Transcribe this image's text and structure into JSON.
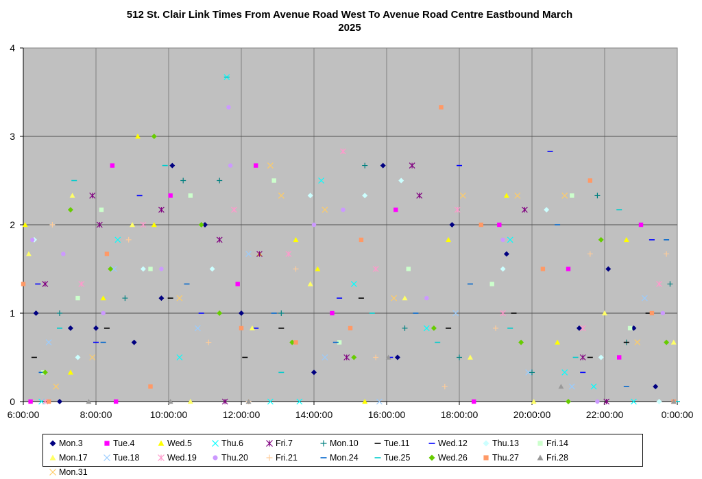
{
  "chart_data": {
    "type": "scatter",
    "title_line1": "512 St. Clair Link Times From Avenue Road West To Avenue Road Centre Eastbound March",
    "title_line2": "2025",
    "xlabel": "",
    "ylabel": "",
    "x_ticks": [
      "6:00:00",
      "8:00:00",
      "10:00:00",
      "12:00:00",
      "14:00:00",
      "16:00:00",
      "18:00:00",
      "20:00:00",
      "22:00:00",
      "0:00:00"
    ],
    "y_ticks": [
      "0",
      "1",
      "2",
      "3",
      "4"
    ],
    "xlim_hours": [
      6,
      24
    ],
    "ylim": [
      0,
      4
    ],
    "grid": true,
    "plot_background": "#c0c0c0",
    "legend_position": "bottom",
    "series": [
      {
        "name": "Mon.3",
        "marker": "diamond",
        "color": "#000080",
        "points": [
          [
            6.35,
            1.0
          ],
          [
            7.0,
            0.0
          ],
          [
            7.3,
            0.83
          ],
          [
            8.0,
            0.83
          ],
          [
            9.05,
            0.67
          ],
          [
            9.8,
            1.17
          ],
          [
            10.1,
            2.67
          ],
          [
            11.0,
            2.0
          ],
          [
            12.0,
            1.0
          ],
          [
            14.0,
            0.33
          ],
          [
            15.9,
            2.67
          ],
          [
            16.3,
            0.5
          ],
          [
            17.8,
            2.0
          ],
          [
            19.3,
            1.67
          ],
          [
            21.3,
            0.83
          ],
          [
            22.1,
            1.5
          ],
          [
            22.8,
            0.83
          ],
          [
            23.4,
            0.17
          ]
        ]
      },
      {
        "name": "Tue.4",
        "marker": "square",
        "color": "#ff00ff",
        "points": [
          [
            6.2,
            0.0
          ],
          [
            8.45,
            2.67
          ],
          [
            8.55,
            0.0
          ],
          [
            10.05,
            2.33
          ],
          [
            11.9,
            1.33
          ],
          [
            12.4,
            2.67
          ],
          [
            14.5,
            1.0
          ],
          [
            16.25,
            2.17
          ],
          [
            18.4,
            0.0
          ],
          [
            19.1,
            2.0
          ],
          [
            21.0,
            1.5
          ],
          [
            22.4,
            0.5
          ],
          [
            23.0,
            2.0
          ]
        ]
      },
      {
        "name": "Wed.5",
        "marker": "triangle",
        "color": "#ffff00",
        "points": [
          [
            6.05,
            2.0
          ],
          [
            7.3,
            0.33
          ],
          [
            8.2,
            1.17
          ],
          [
            9.15,
            3.0
          ],
          [
            9.6,
            2.0
          ],
          [
            12.5,
            1.67
          ],
          [
            13.5,
            1.83
          ],
          [
            14.1,
            1.5
          ],
          [
            15.4,
            0.0
          ],
          [
            17.7,
            1.83
          ],
          [
            19.3,
            2.33
          ],
          [
            20.7,
            0.67
          ],
          [
            22.6,
            1.83
          ]
        ]
      },
      {
        "name": "Thu.6",
        "marker": "x",
        "color": "#00ffff",
        "points": [
          [
            6.5,
            0.0
          ],
          [
            8.6,
            1.83
          ],
          [
            10.3,
            0.5
          ],
          [
            11.6,
            3.67
          ],
          [
            12.8,
            0.0
          ],
          [
            13.6,
            0.0
          ],
          [
            14.2,
            2.5
          ],
          [
            15.1,
            1.33
          ],
          [
            17.1,
            0.83
          ],
          [
            19.4,
            1.83
          ],
          [
            20.9,
            0.33
          ],
          [
            21.7,
            0.17
          ],
          [
            22.8,
            0.0
          ]
        ]
      },
      {
        "name": "Fri.7",
        "marker": "star",
        "color": "#800080",
        "points": [
          [
            6.6,
            1.33
          ],
          [
            7.9,
            2.33
          ],
          [
            8.1,
            2.0
          ],
          [
            9.8,
            2.17
          ],
          [
            11.4,
            1.83
          ],
          [
            11.55,
            0.0
          ],
          [
            12.5,
            1.67
          ],
          [
            14.9,
            0.5
          ],
          [
            16.7,
            2.67
          ],
          [
            16.9,
            2.33
          ],
          [
            19.8,
            2.17
          ],
          [
            21.4,
            0.5
          ],
          [
            22.05,
            0.0
          ]
        ]
      },
      {
        "name": "Mon.10",
        "marker": "plus",
        "color": "#008080",
        "points": [
          [
            7.0,
            1.0
          ],
          [
            8.8,
            1.17
          ],
          [
            10.4,
            2.5
          ],
          [
            11.4,
            2.5
          ],
          [
            13.1,
            1.0
          ],
          [
            15.4,
            2.67
          ],
          [
            16.5,
            0.83
          ],
          [
            18.0,
            0.5
          ],
          [
            20.0,
            0.33
          ],
          [
            21.8,
            2.33
          ],
          [
            22.6,
            0.67
          ],
          [
            23.8,
            1.33
          ]
        ]
      },
      {
        "name": "Tue.11",
        "marker": "dash",
        "color": "#000000",
        "points": [
          [
            6.3,
            0.5
          ],
          [
            8.3,
            0.83
          ],
          [
            10.05,
            1.17
          ],
          [
            12.1,
            0.5
          ],
          [
            13.1,
            0.83
          ],
          [
            15.3,
            1.17
          ],
          [
            17.7,
            0.83
          ],
          [
            19.5,
            1.0
          ],
          [
            21.6,
            0.5
          ],
          [
            22.6,
            0.67
          ],
          [
            23.2,
            1.0
          ]
        ]
      },
      {
        "name": "Wed.12",
        "marker": "dash",
        "color": "#0000ff",
        "points": [
          [
            6.4,
            1.33
          ],
          [
            8.0,
            0.67
          ],
          [
            9.2,
            2.33
          ],
          [
            10.9,
            1.0
          ],
          [
            12.4,
            0.83
          ],
          [
            14.7,
            1.17
          ],
          [
            16.1,
            0.5
          ],
          [
            18.0,
            2.67
          ],
          [
            20.5,
            2.83
          ],
          [
            21.4,
            0.33
          ],
          [
            23.3,
            1.83
          ]
        ]
      },
      {
        "name": "Thu.13",
        "marker": "diamond",
        "color": "#ccffff",
        "points": [
          [
            6.3,
            1.83
          ],
          [
            7.5,
            0.5
          ],
          [
            9.3,
            1.5
          ],
          [
            11.2,
            1.5
          ],
          [
            13.9,
            2.33
          ],
          [
            15.4,
            2.33
          ],
          [
            16.4,
            2.5
          ],
          [
            19.2,
            1.5
          ],
          [
            20.4,
            2.17
          ],
          [
            21.9,
            0.5
          ],
          [
            23.5,
            0.0
          ]
        ]
      },
      {
        "name": "Fri.14",
        "marker": "square",
        "color": "#ccffcc",
        "points": [
          [
            6.55,
            0.33
          ],
          [
            7.5,
            1.17
          ],
          [
            8.15,
            2.17
          ],
          [
            9.5,
            1.5
          ],
          [
            10.6,
            2.33
          ],
          [
            12.9,
            2.5
          ],
          [
            14.7,
            0.67
          ],
          [
            16.6,
            1.5
          ],
          [
            18.9,
            1.33
          ],
          [
            21.1,
            2.33
          ],
          [
            22.7,
            0.83
          ]
        ]
      },
      {
        "name": "Mon.17",
        "marker": "triangle",
        "color": "#ffff66",
        "points": [
          [
            6.15,
            1.67
          ],
          [
            7.35,
            2.33
          ],
          [
            9.0,
            2.0
          ],
          [
            10.6,
            0.0
          ],
          [
            12.3,
            0.83
          ],
          [
            13.9,
            1.33
          ],
          [
            16.5,
            1.17
          ],
          [
            18.3,
            0.5
          ],
          [
            20.05,
            0.0
          ],
          [
            22.0,
            1.0
          ],
          [
            23.9,
            0.67
          ]
        ]
      },
      {
        "name": "Tue.18",
        "marker": "x",
        "color": "#99ccff",
        "points": [
          [
            6.7,
            0.67
          ],
          [
            8.5,
            1.5
          ],
          [
            10.8,
            0.83
          ],
          [
            12.2,
            1.67
          ],
          [
            14.3,
            0.5
          ],
          [
            15.8,
            0.0
          ],
          [
            17.9,
            1.0
          ],
          [
            19.9,
            0.33
          ],
          [
            21.1,
            0.17
          ],
          [
            23.1,
            1.17
          ]
        ]
      },
      {
        "name": "Wed.19",
        "marker": "star",
        "color": "#ff99cc",
        "points": [
          [
            6.6,
            0.0
          ],
          [
            7.6,
            1.33
          ],
          [
            9.3,
            2.0
          ],
          [
            11.8,
            2.17
          ],
          [
            13.3,
            1.67
          ],
          [
            14.8,
            2.83
          ],
          [
            15.7,
            1.5
          ],
          [
            17.95,
            2.17
          ],
          [
            19.2,
            1.0
          ],
          [
            21.4,
            0.83
          ],
          [
            23.5,
            1.33
          ]
        ]
      },
      {
        "name": "Thu.20",
        "marker": "circle",
        "color": "#cc99ff",
        "points": [
          [
            6.25,
            1.83
          ],
          [
            7.1,
            1.67
          ],
          [
            8.2,
            1.0
          ],
          [
            9.8,
            1.5
          ],
          [
            11.65,
            3.33
          ],
          [
            11.7,
            2.67
          ],
          [
            14.0,
            2.0
          ],
          [
            14.8,
            2.17
          ],
          [
            17.1,
            1.17
          ],
          [
            19.2,
            1.83
          ],
          [
            21.8,
            0.0
          ],
          [
            23.6,
            1.0
          ]
        ]
      },
      {
        "name": "Fri.21",
        "marker": "plus",
        "color": "#ffcc99",
        "points": [
          [
            6.8,
            2.0
          ],
          [
            8.9,
            1.83
          ],
          [
            11.1,
            0.67
          ],
          [
            12.2,
            0.0
          ],
          [
            13.5,
            1.5
          ],
          [
            15.7,
            0.5
          ],
          [
            17.6,
            0.17
          ],
          [
            19.0,
            0.83
          ],
          [
            21.6,
            1.67
          ],
          [
            23.7,
            1.67
          ]
        ]
      },
      {
        "name": "Mon.24",
        "marker": "dash",
        "color": "#0066cc",
        "points": [
          [
            6.5,
            0.33
          ],
          [
            8.2,
            0.67
          ],
          [
            10.5,
            1.33
          ],
          [
            12.9,
            1.0
          ],
          [
            14.6,
            0.67
          ],
          [
            16.8,
            1.0
          ],
          [
            18.3,
            1.33
          ],
          [
            20.7,
            2.0
          ],
          [
            22.6,
            0.17
          ],
          [
            23.7,
            1.83
          ]
        ]
      },
      {
        "name": "Tue.25",
        "marker": "dash",
        "color": "#00cccc",
        "points": [
          [
            7.0,
            0.83
          ],
          [
            7.4,
            2.5
          ],
          [
            9.9,
            2.67
          ],
          [
            11.6,
            3.67
          ],
          [
            13.1,
            0.33
          ],
          [
            15.6,
            1.0
          ],
          [
            17.4,
            0.67
          ],
          [
            19.4,
            0.83
          ],
          [
            21.2,
            0.5
          ],
          [
            22.4,
            2.17
          ],
          [
            24.0,
            0.0
          ]
        ]
      },
      {
        "name": "Wed.26",
        "marker": "diamond",
        "color": "#66cc00",
        "points": [
          [
            6.6,
            0.33
          ],
          [
            7.3,
            2.17
          ],
          [
            8.4,
            1.5
          ],
          [
            9.6,
            3.0
          ],
          [
            10.9,
            2.0
          ],
          [
            11.4,
            1.0
          ],
          [
            13.4,
            0.67
          ],
          [
            15.1,
            0.5
          ],
          [
            17.3,
            0.83
          ],
          [
            19.7,
            0.67
          ],
          [
            21.0,
            0.0
          ],
          [
            21.9,
            1.83
          ],
          [
            23.7,
            0.67
          ]
        ]
      },
      {
        "name": "Thu.27",
        "marker": "square",
        "color": "#ff9966",
        "points": [
          [
            6.0,
            1.33
          ],
          [
            6.7,
            0.0
          ],
          [
            8.3,
            1.67
          ],
          [
            9.5,
            0.17
          ],
          [
            12.0,
            0.83
          ],
          [
            13.5,
            0.67
          ],
          [
            15.0,
            0.83
          ],
          [
            15.3,
            1.83
          ],
          [
            17.5,
            3.33
          ],
          [
            18.6,
            2.0
          ],
          [
            20.3,
            1.5
          ],
          [
            21.6,
            2.5
          ],
          [
            23.3,
            1.0
          ],
          [
            23.9,
            0.0
          ]
        ]
      },
      {
        "name": "Fri.28",
        "marker": "triangle",
        "color": "#999999",
        "points": [
          [
            7.8,
            0.0
          ],
          [
            10.05,
            0.0
          ],
          [
            12.2,
            0.0
          ],
          [
            16.05,
            0.5
          ],
          [
            20.8,
            0.17
          ],
          [
            23.9,
            0.0
          ]
        ]
      },
      {
        "name": "Mon.31",
        "marker": "x",
        "color": "#ffcc66",
        "points": [
          [
            6.9,
            0.17
          ],
          [
            7.9,
            0.5
          ],
          [
            10.3,
            1.17
          ],
          [
            12.8,
            2.67
          ],
          [
            13.1,
            2.33
          ],
          [
            14.3,
            2.17
          ],
          [
            16.2,
            1.17
          ],
          [
            18.1,
            2.33
          ],
          [
            19.6,
            2.33
          ],
          [
            20.9,
            2.33
          ],
          [
            22.9,
            0.67
          ]
        ]
      }
    ]
  }
}
